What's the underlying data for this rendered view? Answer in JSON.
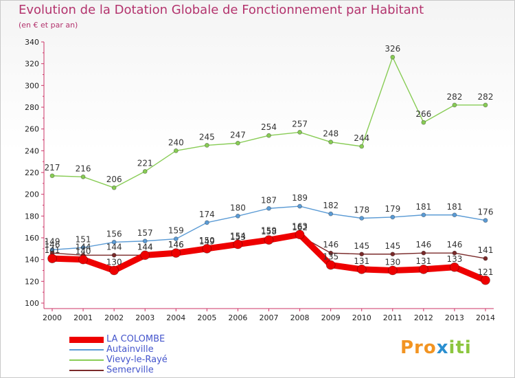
{
  "chart_data": {
    "type": "line",
    "title": "Evolution de la Dotation Globale de Fonctionnement par Habitant",
    "subtitle": "(en € et par an)",
    "x": [
      "2000",
      "2001",
      "2002",
      "2003",
      "2004",
      "2005",
      "2006",
      "2007",
      "2008",
      "2009",
      "2010",
      "2011",
      "2012",
      "2013",
      "2014"
    ],
    "ylim": [
      100,
      340
    ],
    "yticks": [
      100,
      120,
      140,
      160,
      180,
      200,
      220,
      240,
      260,
      280,
      300,
      320,
      340
    ],
    "grid": false,
    "legend_position": "bottom-left",
    "series": [
      {
        "name": "Vievy-le-Rayé",
        "color": "#88cc55",
        "values": [
          217,
          216,
          206,
          221,
          240,
          245,
          247,
          254,
          257,
          248,
          244,
          326,
          266,
          282,
          282
        ],
        "labels": [
          "217",
          "216",
          "206",
          "221",
          "240",
          "245",
          "247",
          "254",
          "257",
          "248",
          "244",
          "326",
          "266",
          "282",
          "282"
        ]
      },
      {
        "name": "Autainville",
        "color": "#5b9bd5",
        "values": [
          149,
          151,
          156,
          157,
          159,
          174,
          180,
          187,
          189,
          182,
          178,
          179,
          181,
          181,
          176
        ],
        "labels": [
          "149",
          "151",
          "156",
          "157",
          "159",
          "174",
          "180",
          "187",
          "189",
          "182",
          "178",
          "179",
          "181",
          "181",
          "176"
        ]
      },
      {
        "name": "Semerville",
        "color": "#7a2a2a",
        "values": [
          146,
          144,
          144,
          144,
          146,
          149,
          153,
          159,
          162,
          146,
          145,
          145,
          146,
          146,
          141
        ],
        "labels": [
          "146",
          "144",
          "144",
          "144",
          "146",
          "149",
          "153",
          "159",
          "162",
          "146",
          "145",
          "145",
          "146",
          "146",
          "141"
        ]
      },
      {
        "name": "LA COLOMBE",
        "color": "#ee0000",
        "values": [
          141,
          140,
          130,
          144,
          146,
          150,
          154,
          158,
          163,
          135,
          131,
          130,
          131,
          133,
          121
        ],
        "labels": [
          "141",
          "140",
          "130",
          "144",
          "146",
          "150",
          "154",
          "158",
          "163",
          "135",
          "131",
          "130",
          "131",
          "133",
          "121"
        ]
      }
    ]
  },
  "legend": [
    {
      "name": "LA COLOMBE",
      "color": "#ee0000",
      "thickness": 9
    },
    {
      "name": "Autainville",
      "color": "#5b9bd5",
      "thickness": 2
    },
    {
      "name": "Vievy-le-Rayé",
      "color": "#88cc55",
      "thickness": 2
    },
    {
      "name": "Semerville",
      "color": "#7a2a2a",
      "thickness": 2
    }
  ],
  "logo": {
    "part1": "Pro",
    "part2": "x",
    "part3": "iti"
  }
}
